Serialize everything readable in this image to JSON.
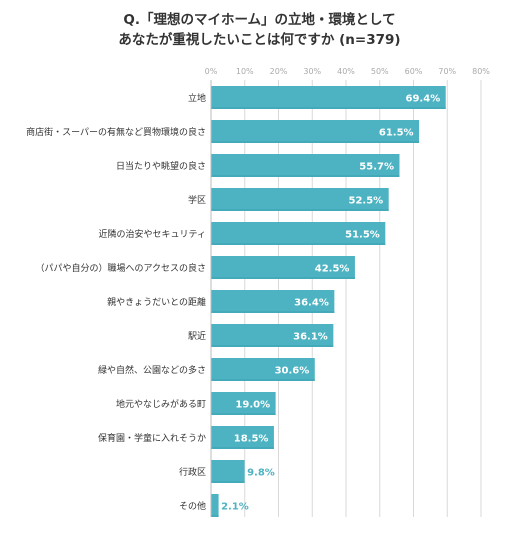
{
  "title": {
    "line1": "Q.「理想のマイホーム」の立地・環境として",
    "line2": "あなたが重視したいことは何ですか (n=379)"
  },
  "colors": {
    "bar": "#4db3c2",
    "bar_edge": "#3a9fb0",
    "grid": "#d9d9d9",
    "label_inside": "#ffffff",
    "label_outside": "#4db3c2"
  },
  "chart_data": {
    "type": "bar",
    "orientation": "horizontal",
    "categories": [
      "立地",
      "商店街・スーパーの有無など買物環境の良さ",
      "日当たりや眺望の良さ",
      "学区",
      "近隣の治安やセキュリティ",
      "（パパや自分の）職場へのアクセスの良さ",
      "親やきょうだいとの距離",
      "駅近",
      "緑や自然、公園などの多さ",
      "地元やなじみがある町",
      "保育園・学童に入れそうか",
      "行政区",
      "その他"
    ],
    "values": [
      69.4,
      61.5,
      55.7,
      52.5,
      51.5,
      42.5,
      36.4,
      36.1,
      30.6,
      19.0,
      18.5,
      9.8,
      2.1
    ],
    "value_labels": [
      "69.4%",
      "61.5%",
      "55.7%",
      "52.5%",
      "51.5%",
      "42.5%",
      "36.4%",
      "36.1%",
      "30.6%",
      "19.0%",
      "18.5%",
      "9.8%",
      "2.1%"
    ],
    "xlim": [
      0,
      80
    ],
    "xticks": [
      0,
      10,
      20,
      30,
      40,
      50,
      60,
      70,
      80
    ],
    "xtick_labels": [
      "0%",
      "10%",
      "20%",
      "30%",
      "40%",
      "50%",
      "60%",
      "70%",
      "80%"
    ],
    "tick_position": "top",
    "grid": true,
    "legend": "none"
  }
}
